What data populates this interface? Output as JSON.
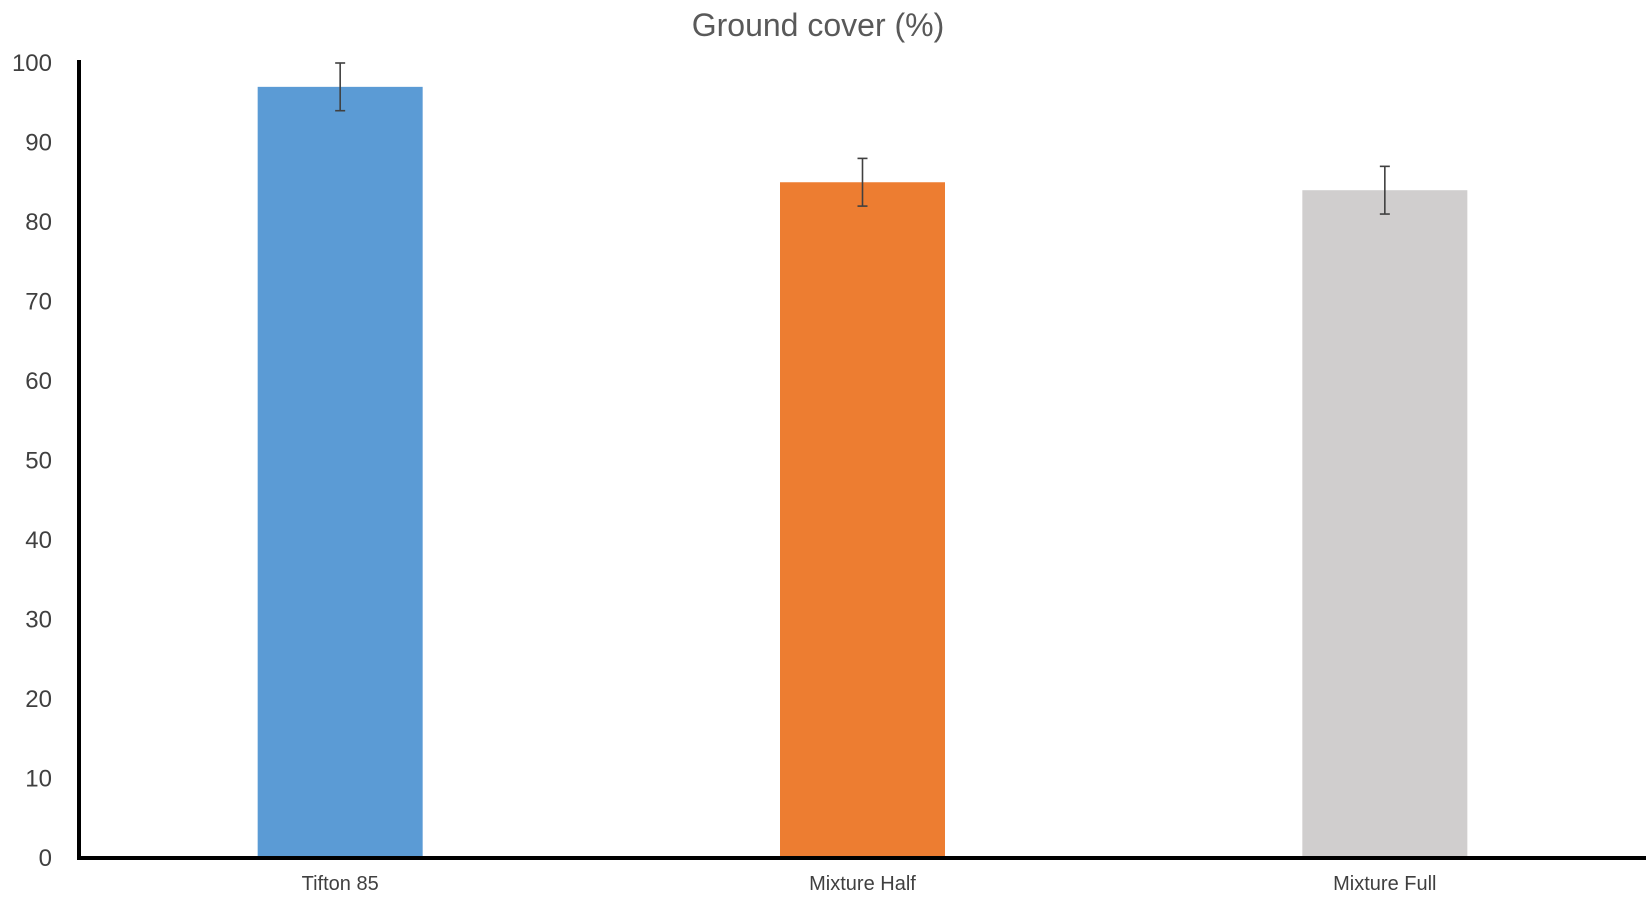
{
  "chart_data": {
    "type": "bar",
    "title": "Ground cover (%)",
    "xlabel": "",
    "ylabel": "",
    "categories": [
      "Tifton 85",
      "Mixture Half",
      "Mixture Full"
    ],
    "values": [
      97,
      85,
      84
    ],
    "error_low": [
      94,
      82,
      81
    ],
    "error_high": [
      100,
      88,
      87
    ],
    "colors": [
      "#5B9BD5",
      "#ED7D31",
      "#D0CECE"
    ],
    "ylim": [
      0,
      100
    ],
    "yticks": [
      "0",
      "10",
      "20",
      "30",
      "40",
      "50",
      "60",
      "70",
      "80",
      "90",
      "100"
    ],
    "grid": false,
    "legend": "none"
  }
}
